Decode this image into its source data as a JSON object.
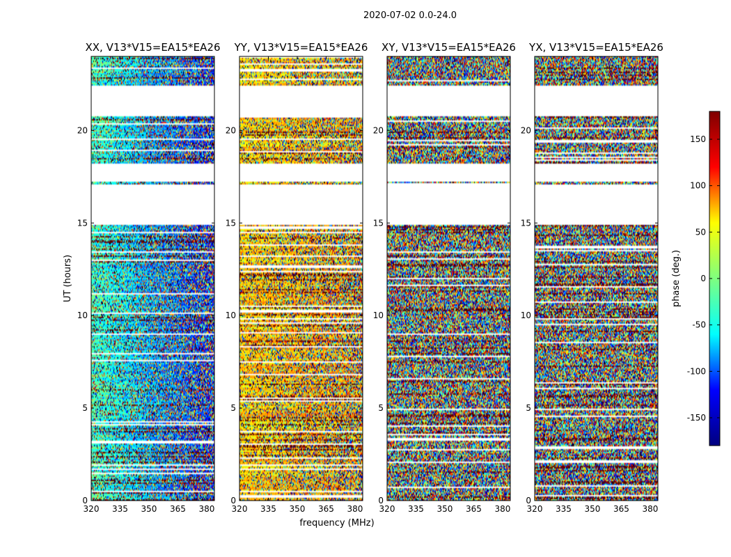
{
  "figure_title": "2020-07-02 0.0-24.0",
  "chart_data": {
    "type": "heatmap",
    "title": "2020-07-02 0.0-24.0",
    "xlabel": "frequency (MHz)",
    "ylabel": "UT (hours)",
    "xlim": [
      320,
      384
    ],
    "ylim": [
      0,
      24
    ],
    "x_ticks": [
      320,
      335,
      350,
      365,
      380
    ],
    "y_ticks": [
      0,
      5,
      10,
      15,
      20
    ],
    "panels": [
      {
        "title": "XX, V13*V15=EA15*EA26",
        "mean_phase": -20,
        "drift": -110,
        "coherence": 0.7
      },
      {
        "title": "YY, V13*V15=EA15*EA26",
        "mean_phase": 60,
        "drift": 15,
        "coherence": 0.7
      },
      {
        "title": "XY, V13*V15=EA15*EA26",
        "mean_phase": 0,
        "drift": 0,
        "coherence": 0.0
      },
      {
        "title": "YX, V13*V15=EA15*EA26",
        "mean_phase": 0,
        "drift": 0,
        "coherence": 0.0
      }
    ],
    "data_hour_ranges": [
      [
        0,
        3.8
      ],
      [
        3.8,
        7.2
      ],
      [
        7.2,
        14.9
      ],
      [
        17.1,
        17.2
      ],
      [
        18.2,
        20.8
      ],
      [
        22.4,
        24
      ]
    ],
    "colorbar": {
      "label": "phase (deg.)",
      "range": [
        -180,
        180
      ],
      "ticks": [
        150,
        100,
        50,
        0,
        -50,
        -100,
        -150
      ],
      "colormap": "jet"
    },
    "colormap_stops": [
      "#00007f",
      "#0000ff",
      "#00ffff",
      "#7fff7f",
      "#ffff00",
      "#ff0000",
      "#7f0000"
    ]
  }
}
